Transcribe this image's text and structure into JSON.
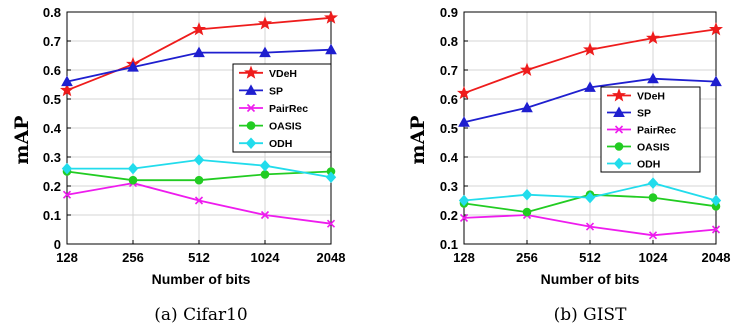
{
  "colors": {
    "VDeH": "#ee1c1c",
    "SP": "#1f1fcf",
    "PairRec": "#ee1cee",
    "OASIS": "#22cc22",
    "ODH": "#22dcec"
  },
  "chart_data": [
    {
      "type": "line",
      "caption": "(a) Cifar10",
      "xlabel": "Number of bits",
      "ylabel": "mAP",
      "categories": [
        "128",
        "256",
        "512",
        "1024",
        "2048"
      ],
      "ylim": [
        0,
        0.8
      ],
      "yticks": [
        "0",
        "0.1",
        "0.2",
        "0.3",
        "0.4",
        "0.5",
        "0.6",
        "0.7",
        "0.8"
      ],
      "grid": true,
      "legend_position": "right",
      "series": [
        {
          "name": "VDeH",
          "marker": "star",
          "values": [
            0.53,
            0.62,
            0.74,
            0.76,
            0.78
          ]
        },
        {
          "name": "SP",
          "marker": "triangle",
          "values": [
            0.56,
            0.61,
            0.66,
            0.66,
            0.67
          ]
        },
        {
          "name": "PairRec",
          "marker": "x",
          "values": [
            0.17,
            0.21,
            0.15,
            0.1,
            0.07
          ]
        },
        {
          "name": "OASIS",
          "marker": "circle",
          "values": [
            0.25,
            0.22,
            0.22,
            0.24,
            0.25
          ]
        },
        {
          "name": "ODH",
          "marker": "diamond",
          "values": [
            0.26,
            0.26,
            0.29,
            0.27,
            0.23
          ]
        }
      ]
    },
    {
      "type": "line",
      "caption": "(b) GIST",
      "xlabel": "Number of bits",
      "ylabel": "mAP",
      "categories": [
        "128",
        "256",
        "512",
        "1024",
        "2048"
      ],
      "ylim": [
        0.1,
        0.9
      ],
      "yticks": [
        "0.1",
        "0.2",
        "0.3",
        "0.4",
        "0.5",
        "0.6",
        "0.7",
        "0.8",
        "0.9"
      ],
      "grid": true,
      "legend_position": "right",
      "series": [
        {
          "name": "VDeH",
          "marker": "star",
          "values": [
            0.62,
            0.7,
            0.77,
            0.81,
            0.84
          ]
        },
        {
          "name": "SP",
          "marker": "triangle",
          "values": [
            0.52,
            0.57,
            0.64,
            0.67,
            0.66
          ]
        },
        {
          "name": "PairRec",
          "marker": "x",
          "values": [
            0.19,
            0.2,
            0.16,
            0.13,
            0.15
          ]
        },
        {
          "name": "OASIS",
          "marker": "circle",
          "values": [
            0.24,
            0.21,
            0.27,
            0.26,
            0.23
          ]
        },
        {
          "name": "ODH",
          "marker": "diamond",
          "values": [
            0.25,
            0.27,
            0.26,
            0.31,
            0.25
          ]
        }
      ]
    }
  ]
}
